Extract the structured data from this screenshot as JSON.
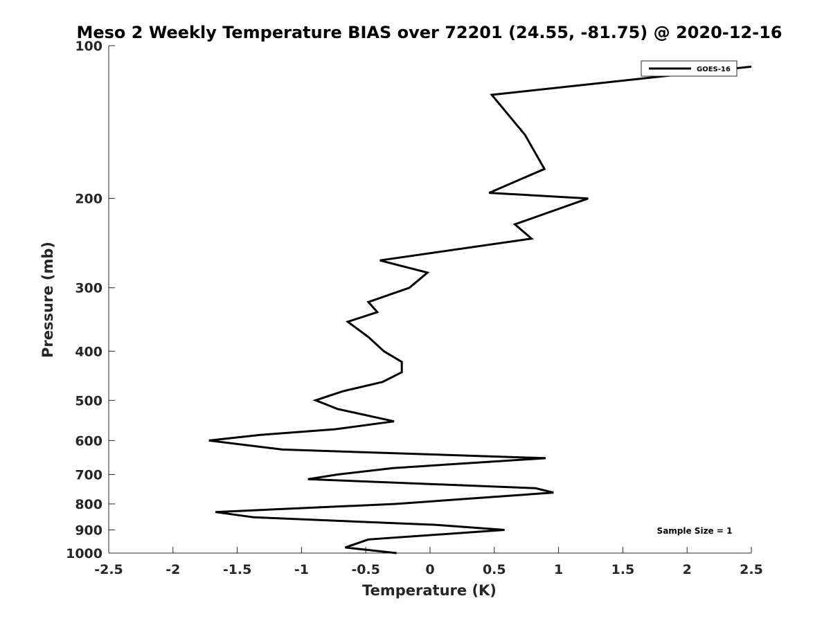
{
  "chart_data": {
    "type": "line",
    "title": "Meso 2 Weekly Temperature BIAS over 72201 (24.55, -81.75) @ 2020-12-16",
    "xlabel": "Temperature (K)",
    "ylabel": "Pressure (mb)",
    "xlim": [
      -2.5,
      2.5
    ],
    "ylim": [
      100,
      1000
    ],
    "y_scale": "log",
    "y_reversed": true,
    "x_ticks": [
      -2.5,
      -2,
      -1.5,
      -1,
      -0.5,
      0,
      0.5,
      1,
      1.5,
      2,
      2.5
    ],
    "x_tick_labels": [
      "-2.5",
      "-2",
      "-1.5",
      "-1",
      "-0.5",
      "0",
      "0.5",
      "1",
      "1.5",
      "2",
      "2.5"
    ],
    "y_ticks": [
      100,
      200,
      300,
      400,
      500,
      600,
      700,
      800,
      900,
      1000
    ],
    "y_tick_labels": [
      "100",
      "200",
      "300",
      "400",
      "500",
      "600",
      "700",
      "800",
      "900",
      "1000"
    ],
    "grid": false,
    "legend_position": "top-right",
    "annotation": "Sample Size = 1",
    "series": [
      {
        "name": "GOES-16",
        "color": "#000000",
        "points": [
          [
            2.5,
            110
          ],
          [
            0.48,
            125
          ],
          [
            0.74,
            150
          ],
          [
            0.89,
            175
          ],
          [
            0.46,
            195
          ],
          [
            1.23,
            200
          ],
          [
            0.66,
            225
          ],
          [
            0.79,
            240
          ],
          [
            -0.39,
            265
          ],
          [
            -0.02,
            280
          ],
          [
            -0.16,
            300
          ],
          [
            -0.48,
            320
          ],
          [
            -0.41,
            335
          ],
          [
            -0.64,
            350
          ],
          [
            -0.48,
            375
          ],
          [
            -0.36,
            400
          ],
          [
            -0.22,
            420
          ],
          [
            -0.22,
            440
          ],
          [
            -0.37,
            460
          ],
          [
            -0.68,
            480
          ],
          [
            -0.89,
            500
          ],
          [
            -0.72,
            520
          ],
          [
            -0.28,
            550
          ],
          [
            -0.74,
            570
          ],
          [
            -1.32,
            585
          ],
          [
            -1.72,
            600
          ],
          [
            -1.15,
            625
          ],
          [
            0.9,
            650
          ],
          [
            -0.29,
            680
          ],
          [
            -0.72,
            700
          ],
          [
            -0.95,
            715
          ],
          [
            0.82,
            745
          ],
          [
            0.96,
            760
          ],
          [
            0.49,
            775
          ],
          [
            -0.27,
            800
          ],
          [
            -1.67,
            830
          ],
          [
            -1.37,
            850
          ],
          [
            0.05,
            880
          ],
          [
            0.58,
            900
          ],
          [
            -0.48,
            940
          ],
          [
            -0.66,
            975
          ],
          [
            -0.26,
            1000
          ]
        ]
      }
    ]
  }
}
